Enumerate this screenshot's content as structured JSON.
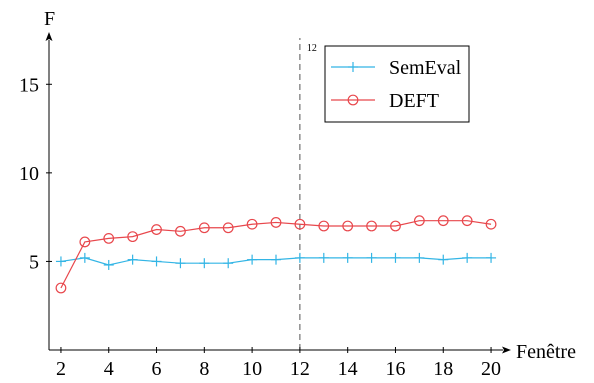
{
  "chart_data": {
    "type": "line",
    "title": "",
    "ylabel": "F",
    "xlabel": "Fenêtre",
    "xlim": [
      1.5,
      20.5
    ],
    "ylim": [
      0,
      17.5
    ],
    "x_ticks": [
      "2",
      "4",
      "6",
      "8",
      "10",
      "12",
      "14",
      "16",
      "18",
      "20"
    ],
    "y_ticks": [
      "5",
      "10",
      "15"
    ],
    "grid": false,
    "legend_position": "top-right",
    "x": [
      2,
      3,
      4,
      5,
      6,
      7,
      8,
      9,
      10,
      11,
      12,
      13,
      14,
      15,
      16,
      17,
      18,
      19,
      20
    ],
    "series": [
      {
        "name": "SemEval",
        "color": "#33b5e5",
        "marker": "plus",
        "values": [
          5.0,
          5.2,
          4.8,
          5.1,
          5.0,
          4.9,
          4.9,
          4.9,
          5.1,
          5.1,
          5.2,
          5.2,
          5.2,
          5.2,
          5.2,
          5.2,
          5.1,
          5.2,
          5.2
        ]
      },
      {
        "name": "DEFT",
        "color": "#e8474c",
        "marker": "circle",
        "values": [
          3.5,
          6.1,
          6.3,
          6.4,
          6.8,
          6.7,
          6.9,
          6.9,
          7.1,
          7.2,
          7.1,
          7.0,
          7.0,
          7.0,
          7.0,
          7.3,
          7.3,
          7.3,
          7.1
        ]
      }
    ],
    "vertical_line": {
      "x": 12,
      "style": "dashed",
      "label": "12"
    }
  }
}
